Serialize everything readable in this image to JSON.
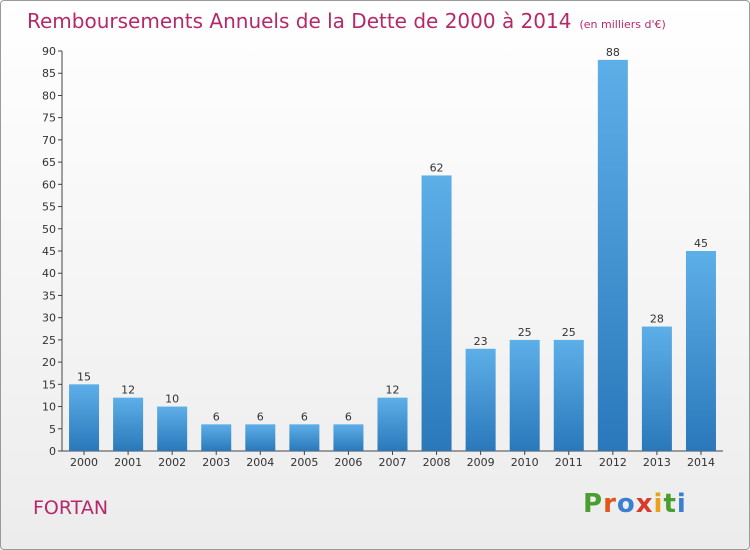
{
  "title": "Remboursements Annuels de la Dette de 2000 à 2014",
  "unit": "(en milliers d'€)",
  "town": "FORTAN",
  "logo": {
    "letters": [
      "P",
      "r",
      "o",
      "x",
      "i",
      "t",
      "i"
    ],
    "colors": [
      "#4a9e2f",
      "#e0571c",
      "#3a7fd0",
      "#d93b2a",
      "#e9a21a",
      "#4a9e2f",
      "#3a7fd0"
    ]
  },
  "colors": {
    "bar_top": "#5dafe8",
    "bar_bottom": "#2a78ba",
    "title": "#b5296a"
  },
  "chart_data": {
    "type": "bar",
    "title": "Remboursements Annuels de la Dette de 2000 à 2014",
    "xlabel": "",
    "ylabel": "",
    "categories": [
      "2000",
      "2001",
      "2002",
      "2003",
      "2004",
      "2005",
      "2006",
      "2007",
      "2008",
      "2009",
      "2010",
      "2011",
      "2012",
      "2013",
      "2014"
    ],
    "values": [
      15,
      12,
      10,
      6,
      6,
      6,
      6,
      12,
      62,
      23,
      25,
      25,
      88,
      28,
      45
    ],
    "ylim": [
      0,
      90
    ],
    "yticks": [
      0,
      5,
      10,
      15,
      20,
      25,
      30,
      35,
      40,
      45,
      50,
      55,
      60,
      65,
      70,
      75,
      80,
      85,
      90
    ],
    "grid": false,
    "data_labels": true
  }
}
